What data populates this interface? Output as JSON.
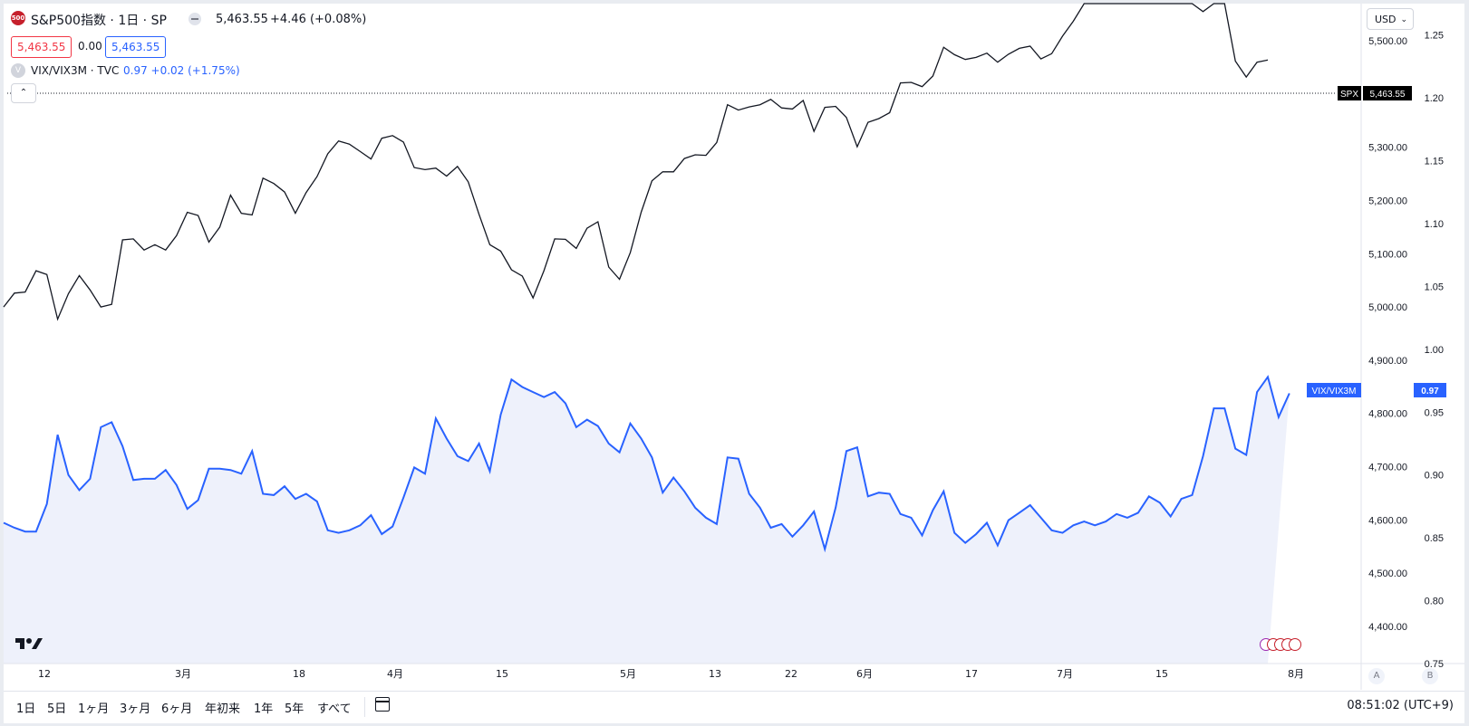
{
  "header": {
    "symbol_badge": "500",
    "title": "S&P500指数 · 1日 · SP",
    "last": "5,463.55",
    "change": "+4.46 (+0.08%)",
    "sell": "5,463.55",
    "spread": "0.00",
    "buy": "5,463.55",
    "vix_badge": "V",
    "vix_title": "VIX/VIX3M · TVC",
    "vix_values": "0.97  +0.02  (+1.75%)"
  },
  "currency": "USD",
  "axis_buttons": {
    "a": "A",
    "b": "B"
  },
  "range_buttons": [
    "1日",
    "5日",
    "1ヶ月",
    "3ヶ月",
    "6ヶ月",
    "年初来",
    "1年",
    "5年",
    "すべて"
  ],
  "clock": "08:51:02 (UTC+9)",
  "colors": {
    "spx": "#131722",
    "vix": "#2962ff",
    "vix_fill": "#eef1fb",
    "grid": "#e0e3eb",
    "spx_label_bg": "#000000"
  },
  "icons": {
    "logo": "tradingview-logo-icon",
    "calendar": "calendar-goto-icon",
    "events": "us-economic-events-icon"
  },
  "chart_data": {
    "type": "line",
    "x_tick_labels": [
      "12",
      "3月",
      "18",
      "4月",
      "15",
      "5月",
      "13",
      "22",
      "6月",
      "17",
      "7月",
      "15",
      "8月"
    ],
    "series": [
      {
        "name": "SPX",
        "axis": "left price scale",
        "last_label": "5,463.55",
        "ylim": [
          4330,
          5570
        ],
        "ticks": [
          "4,400.00",
          "4,500.00",
          "4,600.00",
          "4,700.00",
          "4,800.00",
          "4,900.00",
          "5,000.00",
          "5,100.00",
          "5,200.00",
          "5,300.00",
          "5,400.00",
          "5,500.00"
        ],
        "values": [
          5000,
          5026,
          5028,
          5068,
          5061,
          4977,
          5025,
          5059,
          5032,
          5000,
          5005,
          5126,
          5128,
          5107,
          5117,
          5107,
          5134,
          5178,
          5172,
          5122,
          5150,
          5210,
          5176,
          5173,
          5242,
          5232,
          5216,
          5176,
          5215,
          5245,
          5288,
          5312,
          5306,
          5292,
          5278,
          5317,
          5322,
          5310,
          5262,
          5258,
          5261,
          5246,
          5264,
          5235,
          5174,
          5117,
          5105,
          5070,
          5058,
          5017,
          5068,
          5128,
          5127,
          5110,
          5148,
          5160,
          5075,
          5052,
          5102,
          5178,
          5237,
          5254,
          5254,
          5279,
          5286,
          5285,
          5309,
          5380,
          5370,
          5376,
          5380,
          5390,
          5374,
          5372,
          5388,
          5330,
          5375,
          5377,
          5356,
          5301,
          5347,
          5354,
          5365,
          5421,
          5422,
          5414,
          5434,
          5488,
          5474,
          5465,
          5469,
          5477,
          5460,
          5475,
          5486,
          5490,
          5466,
          5476,
          5509,
          5537,
          5573,
          5582,
          5586,
          5588,
          5633,
          5596,
          5620,
          5637,
          5669,
          5632,
          5588,
          5555,
          5588,
          5581,
          5462,
          5432,
          5460,
          5464
        ]
      },
      {
        "name": "VIX/VIX3M",
        "axis": "right scale",
        "last_label": "0.97",
        "ylim": [
          0.75,
          1.275
        ],
        "ticks": [
          "0.75",
          "0.80",
          "0.85",
          "0.90",
          "0.95",
          "1.00",
          "1.05",
          "1.10",
          "1.15",
          "1.20",
          "1.25"
        ],
        "values": [
          0.862,
          0.858,
          0.855,
          0.855,
          0.877,
          0.932,
          0.9,
          0.888,
          0.897,
          0.938,
          0.942,
          0.923,
          0.896,
          0.897,
          0.897,
          0.904,
          0.892,
          0.873,
          0.88,
          0.905,
          0.905,
          0.904,
          0.901,
          0.919,
          0.885,
          0.884,
          0.891,
          0.881,
          0.885,
          0.879,
          0.856,
          0.854,
          0.856,
          0.86,
          0.868,
          0.853,
          0.859,
          0.882,
          0.906,
          0.901,
          0.945,
          0.929,
          0.915,
          0.911,
          0.925,
          0.903,
          0.948,
          0.976,
          0.97,
          0.966,
          0.962,
          0.966,
          0.957,
          0.938,
          0.944,
          0.939,
          0.925,
          0.918,
          0.941,
          0.929,
          0.914,
          0.886,
          0.898,
          0.887,
          0.874,
          0.866,
          0.861,
          0.914,
          0.913,
          0.885,
          0.874,
          0.858,
          0.861,
          0.851,
          0.86,
          0.871,
          0.841,
          0.874,
          0.919,
          0.922,
          0.883,
          0.886,
          0.885,
          0.869,
          0.866,
          0.852,
          0.872,
          0.887,
          0.854,
          0.846,
          0.853,
          0.862,
          0.844,
          0.864,
          0.87,
          0.876,
          0.866,
          0.856,
          0.854,
          0.86,
          0.863,
          0.86,
          0.863,
          0.869,
          0.866,
          0.87,
          0.883,
          0.878,
          0.867,
          0.881,
          0.884,
          0.915,
          0.953,
          0.953,
          0.921,
          0.916,
          0.966,
          0.978,
          0.946,
          0.965
        ]
      }
    ]
  }
}
